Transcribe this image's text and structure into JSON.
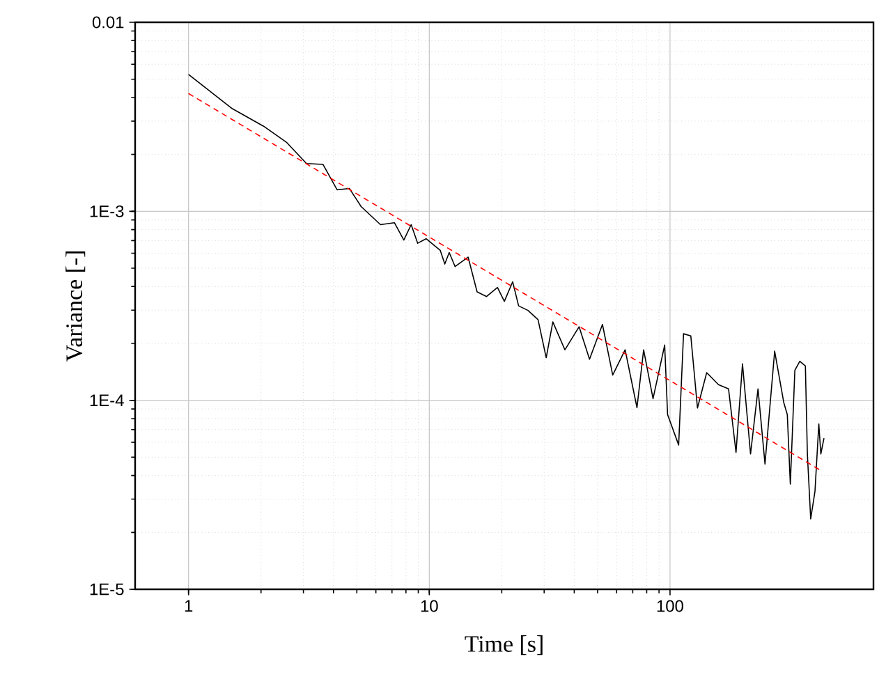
{
  "chart_data": {
    "type": "line",
    "xlabel": "Time [s]",
    "ylabel": "Variance [-]",
    "log": "xy",
    "grid": true,
    "xlim": [
      0.6,
      700
    ],
    "ylim": [
      1e-05,
      0.01
    ],
    "xticks": [
      1,
      10,
      100
    ],
    "yticks": [
      {
        "value": 1e-05,
        "label": "1E-5"
      },
      {
        "value": 0.0001,
        "label": "1E-4"
      },
      {
        "value": 0.001,
        "label": "1E-3"
      },
      {
        "value": 0.01,
        "label": "0.01"
      }
    ],
    "series": [
      {
        "color": "#000000",
        "line_style": "solid",
        "x": [
          1,
          1.52,
          2.05,
          2.56,
          3.09,
          3.62,
          4.14,
          4.66,
          5.21,
          6.27,
          7.17,
          7.84,
          8.41,
          8.95,
          9.7,
          11.1,
          11.6,
          12.1,
          12.8,
          14.5,
          15.8,
          17.3,
          19.2,
          20.5,
          22.2,
          23.5,
          25.7,
          28.3,
          30.6,
          32.6,
          36.6,
          41.9,
          46.3,
          52.4,
          57.8,
          65.1,
          72.9,
          77.7,
          85,
          95,
          97.7,
          108.6,
          113.8,
          122,
          130,
          142,
          159,
          175,
          188,
          200,
          216,
          232,
          248,
          272,
          297,
          307,
          316,
          330,
          346,
          365,
          372,
          384,
          400,
          415,
          423,
          436
        ],
        "values": [
          0.0053,
          0.00349,
          0.00282,
          0.00231,
          0.00179,
          0.00177,
          0.0013,
          0.00132,
          0.00106,
          0.00085,
          0.00087,
          0.000705,
          0.00085,
          0.000678,
          0.000716,
          0.000622,
          0.000526,
          0.000605,
          0.00051,
          0.000572,
          0.000375,
          0.000354,
          0.000396,
          0.000334,
          0.000424,
          0.000316,
          0.000299,
          0.000267,
          0.000168,
          0.00026,
          0.000185,
          0.000245,
          0.000165,
          0.000252,
          0.000136,
          0.000185,
          9.14e-05,
          0.000185,
          0.000102,
          0.000196,
          8.4e-05,
          5.8e-05,
          0.000225,
          0.000219,
          9.1e-05,
          0.00014,
          0.000121,
          0.000115,
          5.3e-05,
          0.000156,
          5.2e-05,
          0.000115,
          4.6e-05,
          0.000182,
          9.7e-05,
          8.4e-05,
          3.6e-05,
          0.000144,
          0.000161,
          0.000152,
          5.2e-05,
          2.36e-05,
          3.3e-05,
          7.5e-05,
          5.2e-05,
          6.3e-05
        ]
      },
      {
        "color": "#ff0000",
        "line_style": "dashed",
        "x": [
          1,
          430
        ],
        "values": [
          0.0042,
          4.2e-05
        ]
      }
    ]
  }
}
